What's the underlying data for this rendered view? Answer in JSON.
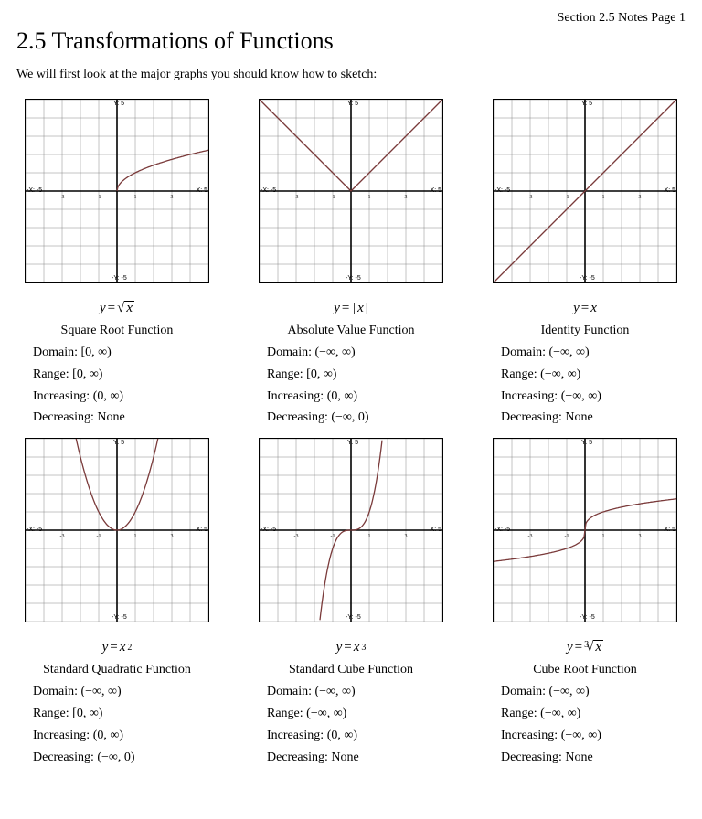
{
  "header": {
    "right": "Section 2.5 Notes  Page 1",
    "title": "2.5  Transformations of Functions",
    "intro": "We will first look at the major graphs you should know how to sketch:"
  },
  "grid": {
    "size": 200,
    "xmin": -5,
    "xmax": 5,
    "ymin": -5,
    "ymax": 5,
    "grid_color": "#888888",
    "axis_color": "#000000",
    "curve_color": "#7a3a3a",
    "bg": "#ffffff",
    "lbl_yt": "Y: 5",
    "lbl_yb": "-Y: -5",
    "lbl_xl": "-X: -5",
    "lbl_xr": "X: 5"
  },
  "cells": [
    {
      "fn": "sqrt",
      "eqn_html": "<span>y</span><span class='up'> = </span><span class='sqrt'><span class='rad'>√</span><span class='under'>x</span></span>",
      "name": "Square Root Function",
      "domain": "Domain:  [0,  ∞)",
      "range": "Range:    [0,  ∞)",
      "increasing": "Increasing:  (0,  ∞)",
      "decreasing": "Decreasing: None"
    },
    {
      "fn": "abs",
      "eqn_html": "<span>y</span><span class='up'> = |</span><span>x</span><span class='up'>|</span>",
      "name": "Absolute Value Function",
      "domain": "Domain:  (−∞,  ∞)",
      "range": "Range: [0,  ∞)",
      "increasing": "Increasing:  (0,  ∞)",
      "decreasing": "Decreasing:  (−∞,  0)"
    },
    {
      "fn": "ident",
      "eqn_html": "<span>y</span><span class='up'> = </span><span>x</span>",
      "name": "Identity Function",
      "domain": "Domain:  (−∞,  ∞)",
      "range": "Range:  (−∞,  ∞)",
      "increasing": "Increasing:  (−∞,  ∞)",
      "decreasing": "Decreasing: None"
    },
    {
      "fn": "sq",
      "eqn_html": "<span>y</span><span class='up'> = </span><span>x</span><span class='sup up'>2</span>",
      "name": "Standard Quadratic Function",
      "domain": "Domain:  (−∞,  ∞)",
      "range": "Range:  [0,  ∞)",
      "increasing": "Increasing:  (0,  ∞)",
      "decreasing": "Decreasing:  (−∞,  0)"
    },
    {
      "fn": "cube",
      "eqn_html": "<span>y</span><span class='up'> = </span><span>x</span><span class='sup up'>3</span>",
      "name": "Standard Cube Function",
      "domain": "Domain:  (−∞,  ∞)",
      "range": "Range:  (−∞,  ∞)",
      "increasing": "Increasing:  (0,  ∞)",
      "decreasing": "Decreasing:  None"
    },
    {
      "fn": "cbrt",
      "eqn_html": "<span>y</span><span class='up'> = </span><span class='sqrt'><span class='sup up' style='margin-right:-3px;'>3</span><span class='rad'>√</span><span class='under'>x</span></span>",
      "name": "Cube Root Function",
      "domain": "Domain:  (−∞,  ∞)",
      "range": "Range:  (−∞,  ∞)",
      "increasing": "Increasing:  (−∞,  ∞)",
      "decreasing": "Decreasing: None"
    }
  ]
}
